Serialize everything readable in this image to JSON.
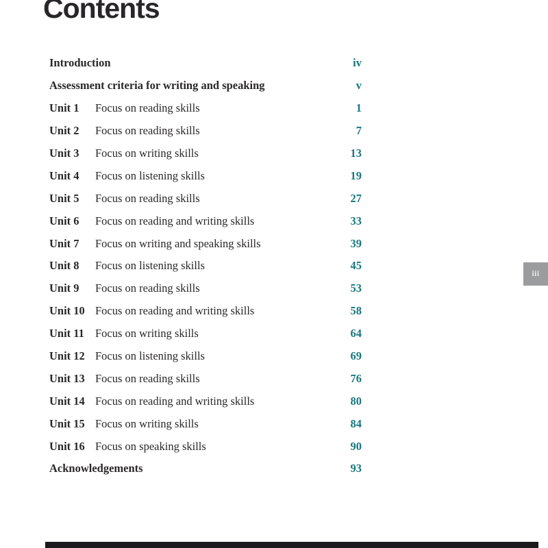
{
  "title": "Contents",
  "side_tab": {
    "label": "iii"
  },
  "toc": {
    "entries": [
      {
        "label": "Introduction",
        "description": "",
        "page": "iv"
      },
      {
        "label": "Assessment criteria for writing and speaking",
        "description": "",
        "page": "v"
      },
      {
        "label": "Unit 1",
        "description": "Focus on reading skills",
        "page": "1"
      },
      {
        "label": "Unit 2",
        "description": "Focus on reading skills",
        "page": "7"
      },
      {
        "label": "Unit 3",
        "description": "Focus on writing skills",
        "page": "13"
      },
      {
        "label": "Unit 4",
        "description": "Focus on listening skills",
        "page": "19"
      },
      {
        "label": "Unit 5",
        "description": "Focus on reading skills",
        "page": "27"
      },
      {
        "label": "Unit 6",
        "description": "Focus on reading and writing skills",
        "page": "33"
      },
      {
        "label": "Unit 7",
        "description": "Focus on writing and speaking skills",
        "page": "39"
      },
      {
        "label": "Unit 8",
        "description": "Focus on listening skills",
        "page": "45"
      },
      {
        "label": "Unit 9",
        "description": "Focus on reading skills",
        "page": "53"
      },
      {
        "label": "Unit 10",
        "description": "Focus on reading and writing skills",
        "page": "58"
      },
      {
        "label": "Unit 11",
        "description": "Focus on writing skills",
        "page": "64"
      },
      {
        "label": "Unit 12",
        "description": "Focus on listening skills",
        "page": "69"
      },
      {
        "label": "Unit 13",
        "description": "Focus on reading skills",
        "page": "76"
      },
      {
        "label": "Unit 14",
        "description": "Focus on reading and writing skills",
        "page": "80"
      },
      {
        "label": "Unit 15",
        "description": "Focus on writing skills",
        "page": "84"
      },
      {
        "label": "Unit 16",
        "description": "Focus on speaking skills",
        "page": "90"
      },
      {
        "label": "Acknowledgements",
        "description": "",
        "page": "93"
      }
    ]
  },
  "colors": {
    "text": "#2a2729",
    "page_number_accent": "#17787f",
    "tab_background": "#9b9c9e",
    "tab_text": "#ececec",
    "footer_bar": "#1a1a1c",
    "page_background": "#ffffff"
  }
}
